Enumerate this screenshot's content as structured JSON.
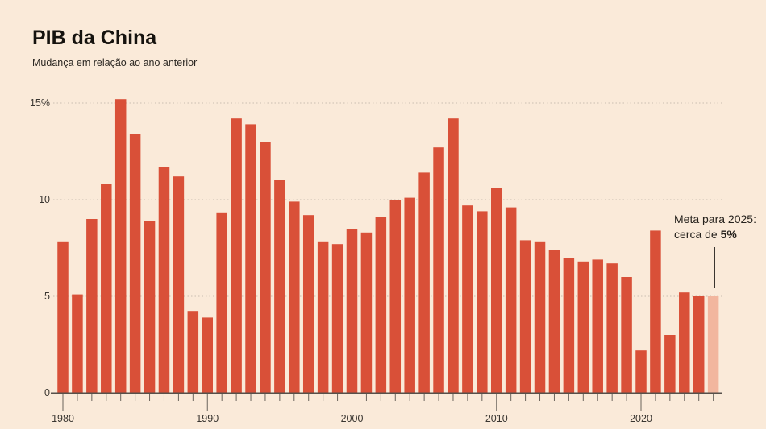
{
  "header": {
    "title": "PIB da China",
    "subtitle": "Mudança em relação ao ano anterior"
  },
  "annotation": {
    "line1": "Meta para 2025:",
    "line2_prefix": "cerca de ",
    "line2_bold": "5%"
  },
  "colors": {
    "background": "#faead9",
    "bar": "#d95038",
    "bar_highlight": "#f2b69e",
    "grid": "#c9beb1",
    "axis": "#56504a",
    "tick": "#6a645c",
    "label": "#3a3631",
    "title_text": "#15120e"
  },
  "chart_data": {
    "type": "bar",
    "title": "PIB da China",
    "subtitle": "Mudança em relação ao ano anterior",
    "xlabel": "",
    "ylabel": "",
    "ylim": [
      0,
      15.5
    ],
    "grid": "dotted-horizontal",
    "legend": "none",
    "categories": [
      1980,
      1981,
      1982,
      1983,
      1984,
      1985,
      1986,
      1987,
      1988,
      1989,
      1990,
      1991,
      1992,
      1993,
      1994,
      1995,
      1996,
      1997,
      1998,
      1999,
      2000,
      2001,
      2002,
      2003,
      2004,
      2005,
      2006,
      2007,
      2008,
      2009,
      2010,
      2011,
      2012,
      2013,
      2014,
      2015,
      2016,
      2017,
      2018,
      2019,
      2020,
      2021,
      2022,
      2023,
      2024,
      2025
    ],
    "values": [
      7.8,
      5.1,
      9.0,
      10.8,
      15.2,
      13.4,
      8.9,
      11.7,
      11.2,
      4.2,
      3.9,
      9.3,
      14.2,
      13.9,
      13.0,
      11.0,
      9.9,
      9.2,
      7.8,
      7.7,
      8.5,
      8.3,
      9.1,
      10.0,
      10.1,
      11.4,
      12.7,
      14.2,
      9.7,
      9.4,
      10.6,
      9.6,
      7.9,
      7.8,
      7.4,
      7.0,
      6.8,
      6.9,
      6.7,
      6.0,
      2.2,
      8.4,
      3.0,
      5.2,
      5.0,
      5.0
    ],
    "highlight_category": 2025,
    "highlight_note": "Meta para 2025: cerca de 5%",
    "yticks": [
      {
        "value": 0,
        "label": "0"
      },
      {
        "value": 5,
        "label": "5"
      },
      {
        "value": 10,
        "label": "10"
      },
      {
        "value": 15,
        "label": "15%"
      }
    ],
    "xticks": [
      "1980",
      "1990",
      "2000",
      "2010",
      "2020"
    ]
  }
}
